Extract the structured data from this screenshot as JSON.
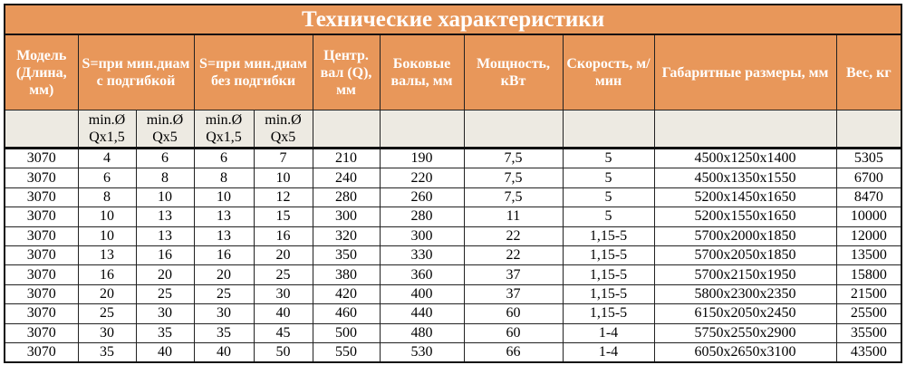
{
  "title": "Технические характеристики",
  "headers": [
    "Модель (Длина, мм)",
    "S=при мин.диам с подгибкой",
    "S=при мин.диам без подгибки",
    "Центр. вал (Q), мм",
    "Боковые валы, мм",
    "Мощность, кВт",
    "Скорость, м/мин",
    "Габаритные размеры, мм",
    "Вес, кг"
  ],
  "subheaders": [
    "min.Ø Qx1,5",
    "min.Ø Qx5",
    "min.Ø Qx1,5",
    "min.Ø Qx5"
  ],
  "colors": {
    "header_bg": "#E8975A",
    "subheader_bg": "#EDEAE2"
  },
  "rows": [
    [
      "3070",
      "4",
      "6",
      "6",
      "7",
      "210",
      "190",
      "7,5",
      "5",
      "4500x1250x1400",
      "5305"
    ],
    [
      "3070",
      "6",
      "8",
      "8",
      "10",
      "240",
      "220",
      "7,5",
      "5",
      "4500x1350x1550",
      "6700"
    ],
    [
      "3070",
      "8",
      "10",
      "10",
      "12",
      "280",
      "260",
      "7,5",
      "5",
      "5200x1450x1650",
      "8470"
    ],
    [
      "3070",
      "10",
      "13",
      "13",
      "15",
      "300",
      "280",
      "11",
      "5",
      "5200x1550x1650",
      "10000"
    ],
    [
      "3070",
      "10",
      "13",
      "13",
      "16",
      "320",
      "300",
      "22",
      "1,15-5",
      "5700x2000x1850",
      "12000"
    ],
    [
      "3070",
      "13",
      "16",
      "16",
      "20",
      "350",
      "330",
      "22",
      "1,15-5",
      "5700x2050x1850",
      "13500"
    ],
    [
      "3070",
      "16",
      "20",
      "20",
      "25",
      "380",
      "360",
      "37",
      "1,15-5",
      "5700x2150x1950",
      "15800"
    ],
    [
      "3070",
      "20",
      "25",
      "25",
      "30",
      "420",
      "400",
      "37",
      "1,15-5",
      "5800x2300x2350",
      "21500"
    ],
    [
      "3070",
      "25",
      "30",
      "30",
      "40",
      "460",
      "440",
      "60",
      "1,15-5",
      "6150x2050x2450",
      "25500"
    ],
    [
      "3070",
      "30",
      "35",
      "35",
      "45",
      "500",
      "480",
      "60",
      "1-4",
      "5750x2550x2900",
      "35500"
    ],
    [
      "3070",
      "35",
      "40",
      "40",
      "50",
      "550",
      "530",
      "66",
      "1-4",
      "6050x2650x3100",
      "43500"
    ]
  ]
}
